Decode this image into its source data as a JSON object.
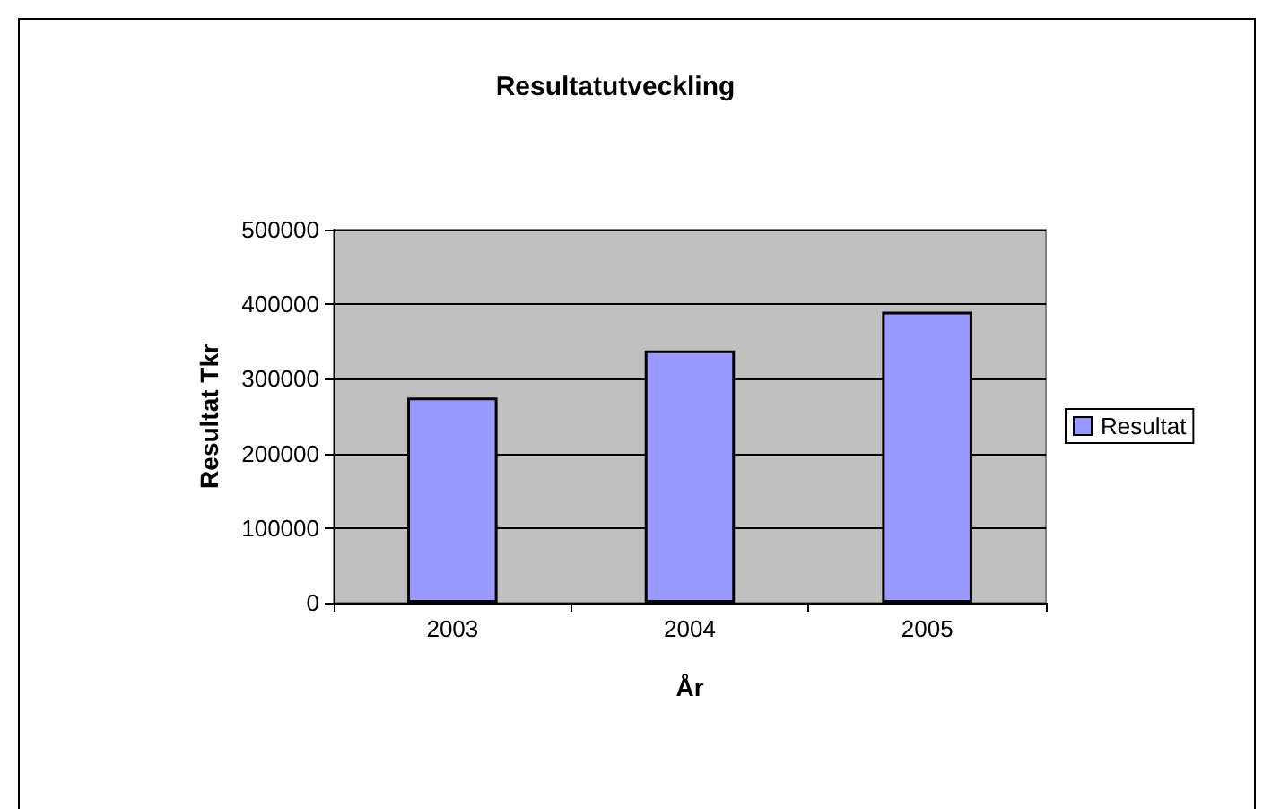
{
  "chart_data": {
    "type": "bar",
    "title": "Resultatutveckling",
    "xlabel": "År",
    "ylabel": "Resultat Tkr",
    "categories": [
      "2003",
      "2004",
      "2005"
    ],
    "series": [
      {
        "name": "Resultat",
        "color": "#9999ff",
        "values": [
          275000,
          338000,
          390000
        ]
      }
    ],
    "ylim": [
      0,
      500000
    ],
    "yticks": [
      0,
      100000,
      200000,
      300000,
      400000,
      500000
    ],
    "grid": "y",
    "legend": "right"
  }
}
